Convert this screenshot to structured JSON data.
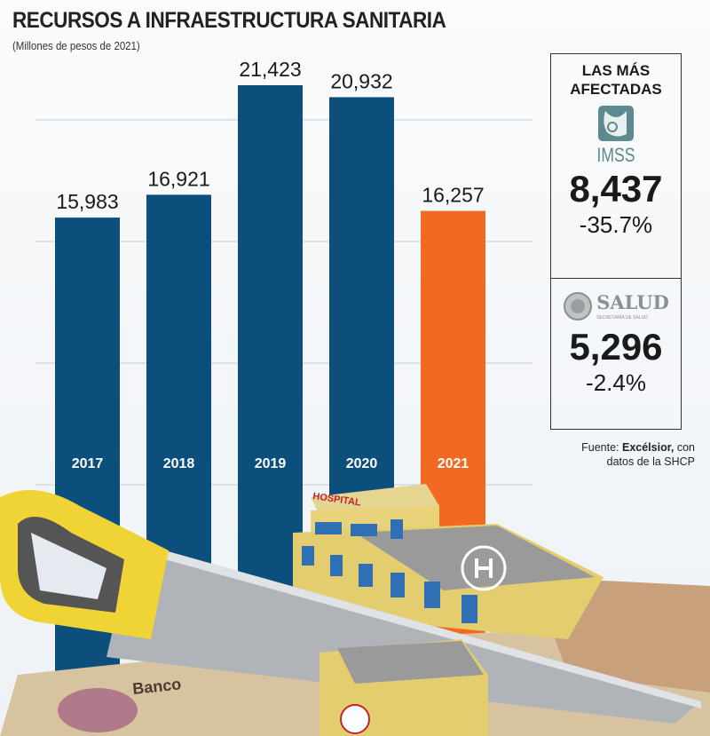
{
  "chart_data": {
    "type": "bar",
    "title": "RECURSOS A INFRAESTRUCTURA SANITARIA",
    "subtitle": "(Millones de pesos de 2021)",
    "categories": [
      "2017",
      "2018",
      "2019",
      "2020",
      "2021"
    ],
    "values": [
      15983,
      16921,
      21423,
      20932,
      16257
    ],
    "value_labels": [
      "15,983",
      "16,921",
      "21,423",
      "20,932",
      "16,257"
    ],
    "colors": [
      "#0d4f7c",
      "#0d4f7c",
      "#0d4f7c",
      "#0d4f7c",
      "#f26a22"
    ],
    "ylim": [
      0,
      24000
    ],
    "gridlines": [
      5000,
      10000,
      15000,
      20000
    ],
    "xlabel": "",
    "ylabel": ""
  },
  "panel": {
    "header_line1": "LAS MÁS",
    "header_line2": "AFECTADAS",
    "imss": {
      "logo_text": "IMSS",
      "value": "8,437",
      "change": "-35.7%"
    },
    "salud": {
      "logo_text": "SALUD",
      "logo_subtext": "SECRETARÍA DE SALUD",
      "value": "5,296",
      "change": "-2.4%"
    }
  },
  "source": {
    "prefix": "Fuente: ",
    "outlet": "Excélsior,",
    "suffix": " con",
    "line2": "datos de la SHCP"
  },
  "illustration": {
    "hospital_sign": "HOSPITAL",
    "banknote_text": "Banco"
  }
}
